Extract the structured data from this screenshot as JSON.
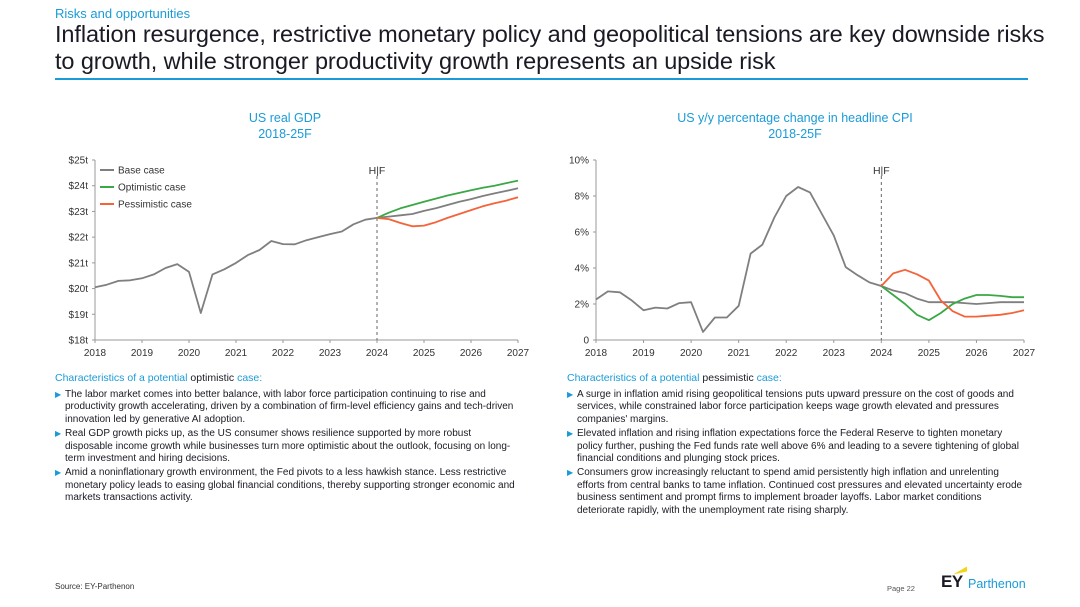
{
  "header": {
    "kicker": "Risks and opportunities",
    "title": "Inflation resurgence, restrictive monetary policy and geopolitical tensions are key downside risks to growth, while stronger productivity growth represents an upside risk"
  },
  "chart_data": [
    {
      "type": "line",
      "title": "US real GDP",
      "subtitle": "2018-25F",
      "marker_label": "H|F",
      "marker_x": 2024,
      "x_ticks": [
        "2018",
        "2019",
        "2020",
        "2021",
        "2022",
        "2023",
        "2024",
        "2025",
        "2026",
        "2027"
      ],
      "y_ticks": [
        "$18t",
        "$19t",
        "$20t",
        "$21t",
        "$22t",
        "$23t",
        "$24t",
        "$25t"
      ],
      "xlim": [
        2018,
        2027
      ],
      "ylim": [
        18,
        25
      ],
      "legend_position": "top-left",
      "series": [
        {
          "name": "Base case",
          "color": "#7f7f7f",
          "x": [
            2018,
            2018.25,
            2018.5,
            2018.75,
            2019,
            2019.25,
            2019.5,
            2019.75,
            2020,
            2020.25,
            2020.5,
            2020.75,
            2021,
            2021.25,
            2021.5,
            2021.75,
            2022,
            2022.25,
            2022.5,
            2022.75,
            2023,
            2023.25,
            2023.5,
            2023.75,
            2024,
            2024.25,
            2024.5,
            2024.75,
            2025,
            2025.25,
            2025.5,
            2025.75,
            2026,
            2026.25,
            2026.5,
            2026.75,
            2027
          ],
          "values": [
            20.05,
            20.15,
            20.3,
            20.32,
            20.4,
            20.55,
            20.8,
            20.95,
            20.65,
            19.05,
            20.55,
            20.75,
            21.0,
            21.3,
            21.5,
            21.85,
            21.73,
            21.72,
            21.88,
            22.0,
            22.12,
            22.22,
            22.5,
            22.68,
            22.75,
            22.8,
            22.85,
            22.9,
            23.02,
            23.12,
            23.25,
            23.38,
            23.48,
            23.6,
            23.7,
            23.8,
            23.9
          ]
        },
        {
          "name": "Optimistic case",
          "color": "#3aa845",
          "x": [
            2024,
            2024.25,
            2024.5,
            2024.75,
            2025,
            2025.25,
            2025.5,
            2025.75,
            2026,
            2026.25,
            2026.5,
            2026.75,
            2027
          ],
          "values": [
            22.75,
            22.95,
            23.12,
            23.25,
            23.38,
            23.5,
            23.62,
            23.72,
            23.82,
            23.92,
            24.0,
            24.1,
            24.2
          ]
        },
        {
          "name": "Pessimistic case",
          "color": "#f4633a",
          "x": [
            2024,
            2024.25,
            2024.5,
            2024.75,
            2025,
            2025.25,
            2025.5,
            2025.75,
            2026,
            2026.25,
            2026.5,
            2026.75,
            2027
          ],
          "values": [
            22.75,
            22.7,
            22.55,
            22.42,
            22.45,
            22.58,
            22.75,
            22.9,
            23.05,
            23.2,
            23.32,
            23.42,
            23.55
          ]
        }
      ]
    },
    {
      "type": "line",
      "title": "US y/y percentage change in headline CPI",
      "subtitle": "2018-25F",
      "marker_label": "H|F",
      "marker_x": 2024,
      "x_ticks": [
        "2018",
        "2019",
        "2020",
        "2021",
        "2022",
        "2023",
        "2024",
        "2025",
        "2026",
        "2027"
      ],
      "y_ticks": [
        "0",
        "2%",
        "4%",
        "6%",
        "8%",
        "10%"
      ],
      "xlim": [
        2018,
        2027
      ],
      "ylim": [
        0,
        10
      ],
      "series": [
        {
          "color": "#7f7f7f",
          "x": [
            2018,
            2018.25,
            2018.5,
            2018.75,
            2019,
            2019.25,
            2019.5,
            2019.75,
            2020,
            2020.25,
            2020.5,
            2020.75,
            2021,
            2021.25,
            2021.5,
            2021.75,
            2022,
            2022.25,
            2022.5,
            2022.75,
            2023,
            2023.25,
            2023.5,
            2023.75,
            2024,
            2024.25,
            2024.5,
            2024.75,
            2025,
            2025.25,
            2025.5,
            2025.75,
            2026,
            2026.25,
            2026.5,
            2026.75,
            2027
          ],
          "values": [
            2.25,
            2.7,
            2.65,
            2.2,
            1.65,
            1.8,
            1.75,
            2.05,
            2.1,
            0.45,
            1.25,
            1.25,
            1.9,
            4.8,
            5.3,
            6.8,
            8.0,
            8.5,
            8.2,
            7.0,
            5.8,
            4.05,
            3.6,
            3.2,
            3.0,
            2.75,
            2.6,
            2.3,
            2.1,
            2.1,
            2.1,
            2.05,
            2.0,
            2.05,
            2.1,
            2.1,
            2.1
          ]
        },
        {
          "color": "#3aa845",
          "x": [
            2024,
            2024.25,
            2024.5,
            2024.75,
            2025,
            2025.25,
            2025.5,
            2025.75,
            2026,
            2026.25,
            2026.5,
            2026.75,
            2027
          ],
          "values": [
            3.0,
            2.5,
            2.0,
            1.4,
            1.1,
            1.5,
            2.0,
            2.3,
            2.5,
            2.5,
            2.45,
            2.38,
            2.38
          ]
        },
        {
          "color": "#f4633a",
          "x": [
            2024,
            2024.25,
            2024.5,
            2024.75,
            2025,
            2025.25,
            2025.5,
            2025.75,
            2026,
            2026.25,
            2026.5,
            2026.75,
            2027
          ],
          "values": [
            3.0,
            3.7,
            3.9,
            3.65,
            3.3,
            2.2,
            1.6,
            1.3,
            1.3,
            1.35,
            1.4,
            1.5,
            1.65
          ]
        }
      ]
    }
  ],
  "left_panel": {
    "heading_pre": "Characteristics of a potential ",
    "heading_key": "optimistic",
    "heading_post": " case:",
    "bullets": [
      "The labor market comes into better balance, with labor force participation continuing to rise and productivity growth accelerating, driven by a combination of firm-level efficiency gains and tech-driven innovation led by generative AI adoption.",
      "Real GDP growth picks up, as the US consumer shows resilience supported by more robust disposable income growth while businesses turn more optimistic about the outlook, focusing on long-term investment and hiring decisions.",
      "Amid a noninflationary growth environment, the Fed pivots to a less hawkish stance. Less restrictive monetary policy leads to easing global financial conditions, thereby supporting stronger economic and markets transactions activity."
    ]
  },
  "right_panel": {
    "heading_pre": "Characteristics of a potential ",
    "heading_key": "pessimistic",
    "heading_post": " case:",
    "bullets": [
      "A surge in inflation amid rising geopolitical tensions puts upward pressure on the cost of goods and services, while constrained labor force participation keeps wage growth elevated and pressures companies' margins.",
      "Elevated inflation and rising inflation expectations force the Federal Reserve to tighten monetary policy further, pushing the Fed funds rate well above 6% and leading to a severe tightening of global financial conditions and plunging stock prices.",
      "Consumers grow increasingly reluctant to spend amid persistently high inflation and unrelenting efforts from central banks to tame inflation. Continued cost pressures and elevated uncertainty erode business sentiment and prompt firms to implement broader layoffs. Labor market conditions deteriorate rapidly, with the unemployment rate rising sharply."
    ]
  },
  "footer": {
    "source": "Source: EY-Parthenon",
    "page": "Page 22",
    "logo_ey": "EY",
    "logo_parthenon": "Parthenon"
  }
}
